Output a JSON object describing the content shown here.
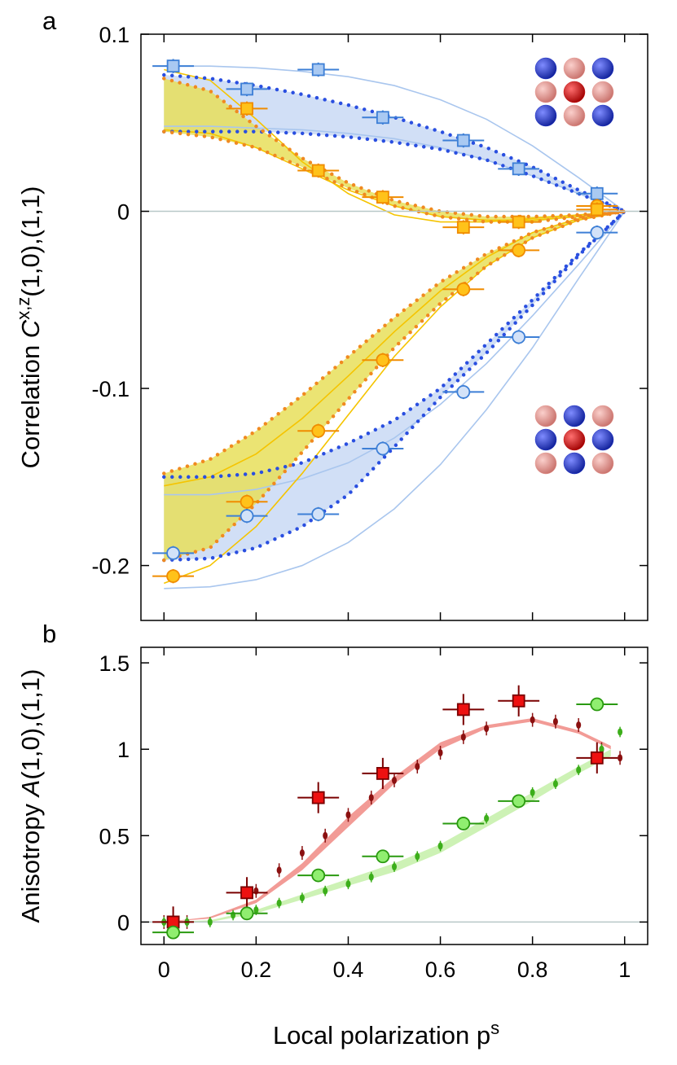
{
  "chart_data": [
    {
      "type": "scatter",
      "panel_label": "a",
      "ylabel": {
        "text": "Correlation ",
        "symbol": "C",
        "superscript": "x,z",
        "subscript": "(1,0),(1,1)"
      },
      "xlim": [
        -0.05,
        1.05
      ],
      "xticks": [
        0,
        0.2,
        0.4,
        0.6,
        0.8,
        1
      ],
      "show_xtick_labels": false,
      "ylim": [
        -0.231,
        0.1
      ],
      "yticks": [
        0.1,
        0,
        -0.1,
        -0.2
      ],
      "zero_line": true,
      "bands": [
        {
          "color": "#c9d9f5",
          "edge": "#2a4fe0",
          "x": [
            0,
            0.1,
            0.2,
            0.3,
            0.4,
            0.5,
            0.6,
            0.7,
            0.8,
            0.9,
            1
          ],
          "lower": [
            0.045,
            0.045,
            0.045,
            0.044,
            0.042,
            0.039,
            0.035,
            0.029,
            0.02,
            0.01,
            0
          ],
          "upper": [
            0.077,
            0.075,
            0.071,
            0.066,
            0.06,
            0.053,
            0.045,
            0.036,
            0.025,
            0.012,
            0
          ]
        },
        {
          "color": "#c9d9f5",
          "edge": "#2a4fe0",
          "x": [
            0,
            0.1,
            0.2,
            0.3,
            0.4,
            0.5,
            0.6,
            0.7,
            0.8,
            0.9,
            1
          ],
          "lower": [
            -0.197,
            -0.196,
            -0.19,
            -0.178,
            -0.16,
            -0.133,
            -0.105,
            -0.08,
            -0.053,
            -0.025,
            0
          ],
          "upper": [
            -0.15,
            -0.15,
            -0.148,
            -0.142,
            -0.131,
            -0.118,
            -0.1,
            -0.075,
            -0.05,
            -0.024,
            0
          ]
        },
        {
          "color": "#e8df5a",
          "edge": "#f08a20",
          "x": [
            0,
            0.1,
            0.2,
            0.3,
            0.4,
            0.5,
            0.6,
            0.7,
            0.8,
            0.9,
            1
          ],
          "lower": [
            0.045,
            0.042,
            0.036,
            0.025,
            0.013,
            0.003,
            -0.003,
            -0.006,
            -0.006,
            -0.003,
            0
          ],
          "upper": [
            0.075,
            0.068,
            0.048,
            0.03,
            0.016,
            0.006,
            0.0,
            -0.003,
            -0.003,
            -0.002,
            0
          ]
        },
        {
          "color": "#e8df5a",
          "edge": "#f08a20",
          "x": [
            0,
            0.1,
            0.2,
            0.3,
            0.4,
            0.5,
            0.6,
            0.7,
            0.8,
            0.9,
            1
          ],
          "lower": [
            -0.197,
            -0.19,
            -0.165,
            -0.136,
            -0.106,
            -0.077,
            -0.052,
            -0.031,
            -0.015,
            -0.005,
            0
          ],
          "upper": [
            -0.148,
            -0.14,
            -0.124,
            -0.104,
            -0.082,
            -0.06,
            -0.04,
            -0.024,
            -0.012,
            -0.004,
            0
          ]
        }
      ],
      "lines": [
        {
          "color": "#a9c6ee",
          "x": [
            0,
            0.1,
            0.2,
            0.3,
            0.4,
            0.5,
            0.6,
            0.7,
            0.8,
            0.9,
            1
          ],
          "values": [
            0.082,
            0.082,
            0.081,
            0.079,
            0.076,
            0.071,
            0.063,
            0.052,
            0.037,
            0.019,
            0
          ]
        },
        {
          "color": "#a9c6ee",
          "x": [
            0,
            0.1,
            0.2,
            0.3,
            0.4,
            0.5,
            0.6,
            0.7,
            0.8,
            0.9,
            1
          ],
          "values": [
            0.048,
            0.048,
            0.047,
            0.046,
            0.044,
            0.041,
            0.036,
            0.029,
            0.02,
            0.01,
            0
          ]
        },
        {
          "color": "#a9c6ee",
          "x": [
            0,
            0.1,
            0.2,
            0.3,
            0.4,
            0.5,
            0.6,
            0.7,
            0.8,
            0.9,
            1
          ],
          "values": [
            -0.213,
            -0.212,
            -0.208,
            -0.2,
            -0.187,
            -0.168,
            -0.143,
            -0.112,
            -0.077,
            -0.038,
            0
          ]
        },
        {
          "color": "#a9c6ee",
          "x": [
            0,
            0.1,
            0.2,
            0.3,
            0.4,
            0.5,
            0.6,
            0.7,
            0.8,
            0.9,
            1
          ],
          "values": [
            -0.16,
            -0.16,
            -0.157,
            -0.151,
            -0.142,
            -0.128,
            -0.109,
            -0.086,
            -0.059,
            -0.03,
            0
          ]
        },
        {
          "color": "#f5c400",
          "x": [
            0,
            0.1,
            0.2,
            0.3,
            0.4,
            0.5,
            0.6,
            0.7,
            0.8,
            0.9,
            1
          ],
          "values": [
            0.08,
            0.074,
            0.052,
            0.028,
            0.01,
            -0.002,
            -0.006,
            -0.006,
            -0.004,
            -0.002,
            0
          ]
        },
        {
          "color": "#f5c400",
          "x": [
            0,
            0.1,
            0.2,
            0.3,
            0.4,
            0.5,
            0.6,
            0.7,
            0.8,
            0.9,
            1
          ],
          "values": [
            0.046,
            0.044,
            0.036,
            0.024,
            0.012,
            0.003,
            -0.003,
            -0.005,
            -0.005,
            -0.003,
            0
          ]
        },
        {
          "color": "#f5c400",
          "x": [
            0,
            0.1,
            0.2,
            0.3,
            0.4,
            0.5,
            0.6,
            0.7,
            0.8,
            0.9,
            1
          ],
          "values": [
            -0.21,
            -0.2,
            -0.178,
            -0.148,
            -0.115,
            -0.082,
            -0.054,
            -0.031,
            -0.015,
            -0.005,
            0
          ]
        },
        {
          "color": "#f5c400",
          "x": [
            0,
            0.1,
            0.2,
            0.3,
            0.4,
            0.5,
            0.6,
            0.7,
            0.8,
            0.9,
            1
          ],
          "values": [
            -0.155,
            -0.15,
            -0.137,
            -0.117,
            -0.093,
            -0.068,
            -0.045,
            -0.026,
            -0.012,
            -0.004,
            0
          ]
        }
      ],
      "series": [
        {
          "marker": "square",
          "color": "#a9c9f2",
          "edge": "#3d7fd6",
          "x": [
            0.02,
            0.18,
            0.335,
            0.475,
            0.65,
            0.77,
            0.94
          ],
          "values": [
            0.082,
            0.069,
            0.08,
            0.053,
            0.04,
            0.024,
            0.01
          ],
          "xerr": 0.045,
          "yerr": 0.004
        },
        {
          "marker": "circle",
          "color": "#d3e2f8",
          "edge": "#3d7fd6",
          "x": [
            0.02,
            0.18,
            0.335,
            0.475,
            0.65,
            0.77,
            0.94
          ],
          "values": [
            -0.193,
            -0.172,
            -0.171,
            -0.134,
            -0.102,
            -0.071,
            -0.012
          ],
          "xerr": 0.045,
          "yerr": 0.004
        },
        {
          "marker": "circle",
          "color": "#ffc21a",
          "edge": "#f08c00",
          "x": [
            0.02,
            0.18,
            0.335,
            0.475,
            0.65,
            0.77,
            0.94
          ],
          "values": [
            -0.206,
            -0.164,
            -0.124,
            -0.084,
            -0.044,
            -0.022,
            0.003
          ],
          "xerr": 0.045,
          "yerr": 0.004
        },
        {
          "marker": "square",
          "color": "#ffc21a",
          "edge": "#f08c00",
          "x": [
            0.18,
            0.335,
            0.475,
            0.65,
            0.77,
            0.94
          ],
          "values": [
            0.058,
            0.023,
            0.008,
            -0.009,
            -0.006,
            0.001
          ],
          "xerr": 0.045,
          "yerr": 0.004
        }
      ]
    },
    {
      "type": "scatter",
      "panel_label": "b",
      "ylabel": {
        "text": "Anisotropy ",
        "symbol": "A",
        "subscript": "(1,0),(1,1)"
      },
      "xlabel": {
        "text": "Local polarization p",
        "superscript": "s"
      },
      "xlim": [
        -0.05,
        1.05
      ],
      "xticks": [
        0,
        0.2,
        0.4,
        0.6,
        0.8,
        1
      ],
      "show_xtick_labels": true,
      "ylim": [
        -0.13,
        1.59
      ],
      "yticks": [
        0,
        0.5,
        1,
        1.5
      ],
      "zero_line": true,
      "bands": [
        {
          "color": "#f08a84",
          "x": [
            0,
            0.1,
            0.2,
            0.3,
            0.4,
            0.5,
            0.6,
            0.7,
            0.8,
            0.9,
            0.97
          ],
          "lower": [
            0,
            0.02,
            0.11,
            0.3,
            0.55,
            0.8,
            1.0,
            1.12,
            1.16,
            1.09,
            1.0
          ],
          "upper": [
            0,
            0.03,
            0.13,
            0.34,
            0.61,
            0.84,
            1.04,
            1.14,
            1.18,
            1.11,
            1.02
          ]
        },
        {
          "color": "#c4f0a8",
          "x": [
            0,
            0.1,
            0.2,
            0.3,
            0.4,
            0.5,
            0.6,
            0.7,
            0.8,
            0.9,
            0.97
          ],
          "lower": [
            0,
            0.0,
            0.05,
            0.13,
            0.21,
            0.29,
            0.4,
            0.55,
            0.7,
            0.86,
            0.96
          ],
          "upper": [
            0,
            0.01,
            0.07,
            0.16,
            0.25,
            0.34,
            0.45,
            0.6,
            0.75,
            0.9,
            1.0
          ]
        }
      ],
      "dots": [
        {
          "color": "#8b1010",
          "x": [
            0,
            0.05,
            0.2,
            0.25,
            0.3,
            0.35,
            0.4,
            0.45,
            0.5,
            0.55,
            0.6,
            0.65,
            0.7,
            0.8,
            0.85,
            0.9,
            0.95,
            0.99
          ],
          "values": [
            0,
            0,
            0.18,
            0.3,
            0.4,
            0.5,
            0.62,
            0.72,
            0.82,
            0.9,
            0.98,
            1.07,
            1.12,
            1.17,
            1.16,
            1.14,
            1.0,
            0.95
          ],
          "yerr": 0.04
        },
        {
          "color": "#3cae1a",
          "x": [
            0,
            0.05,
            0.1,
            0.15,
            0.2,
            0.25,
            0.3,
            0.35,
            0.4,
            0.45,
            0.5,
            0.55,
            0.6,
            0.7,
            0.8,
            0.85,
            0.9,
            0.95,
            0.99
          ],
          "values": [
            0,
            0,
            0,
            0.04,
            0.07,
            0.11,
            0.14,
            0.18,
            0.22,
            0.26,
            0.32,
            0.38,
            0.44,
            0.6,
            0.75,
            0.8,
            0.88,
            1.0,
            1.1
          ],
          "yerr": 0.03
        }
      ],
      "series": [
        {
          "marker": "square",
          "color": "#ee1111",
          "edge": "#7a0000",
          "x": [
            0.02,
            0.18,
            0.335,
            0.475,
            0.65,
            0.77,
            0.94
          ],
          "values": [
            0.0,
            0.17,
            0.72,
            0.86,
            1.23,
            1.28,
            0.95
          ],
          "xerr": 0.045,
          "yerr": 0.09
        },
        {
          "marker": "circle",
          "color": "#90ee70",
          "edge": "#2a9a10",
          "x": [
            0.02,
            0.18,
            0.335,
            0.475,
            0.65,
            0.77,
            0.94
          ],
          "values": [
            -0.06,
            0.05,
            0.27,
            0.38,
            0.57,
            0.7,
            1.26
          ],
          "xerr": 0.045,
          "yerr": 0.03
        }
      ]
    }
  ]
}
